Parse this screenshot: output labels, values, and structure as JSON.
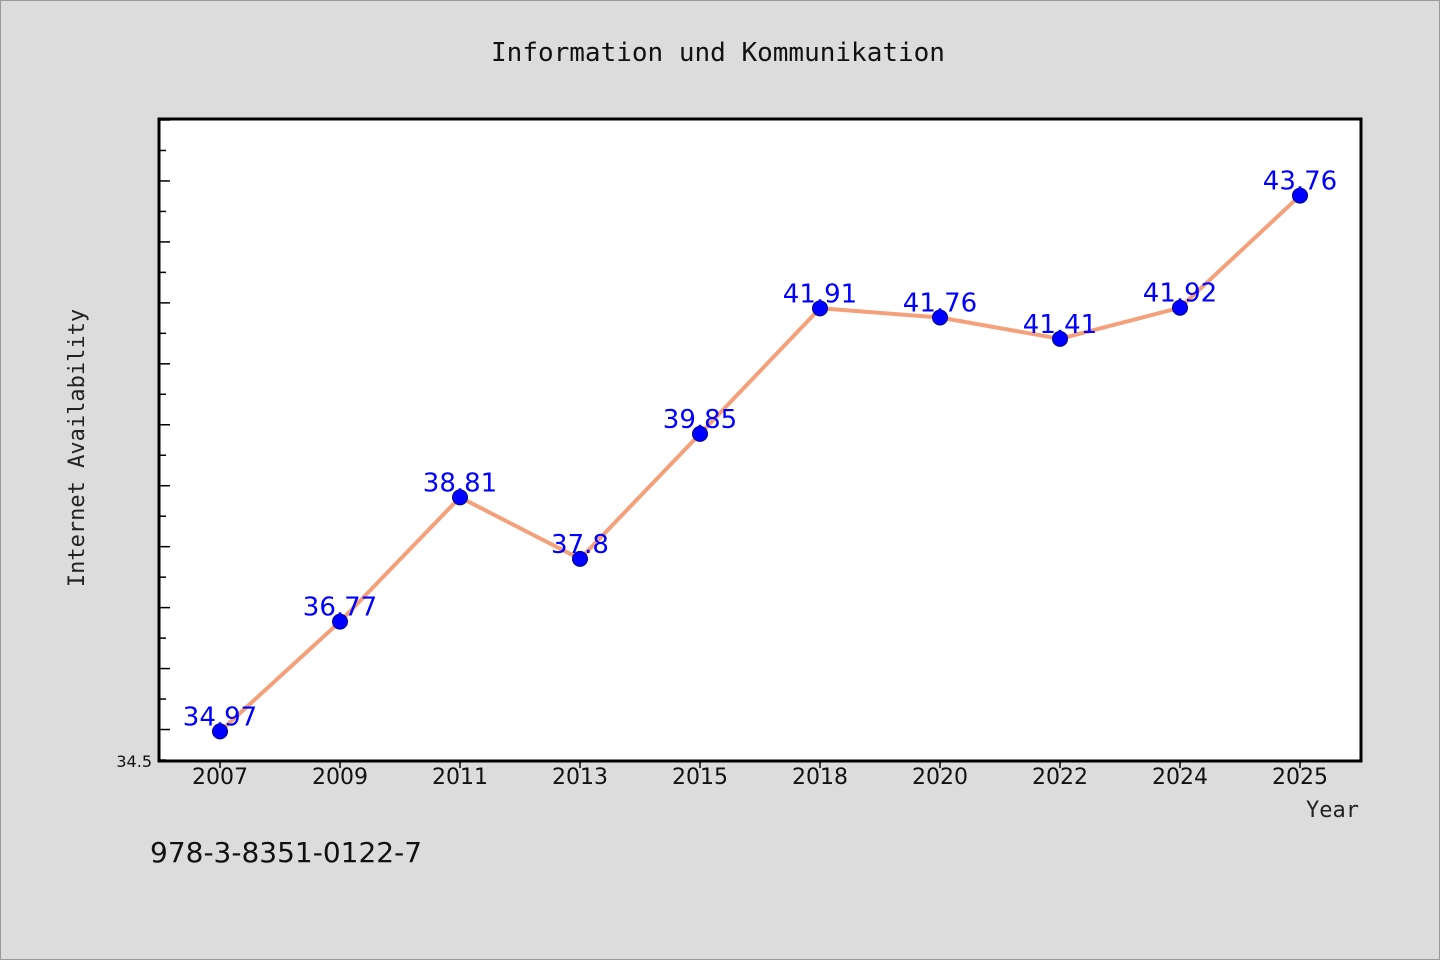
{
  "chart_data": {
    "type": "line",
    "title": "Information und Kommunikation",
    "xlabel": "Year",
    "ylabel": "Internet Availability",
    "categories": [
      "2007",
      "2009",
      "2011",
      "2013",
      "2015",
      "2018",
      "2020",
      "2022",
      "2024",
      "2025"
    ],
    "series": [
      {
        "values": [
          34.97,
          36.77,
          38.81,
          37.8,
          39.85,
          41.91,
          41.76,
          41.41,
          41.92,
          43.76
        ],
        "labels": [
          "34.97",
          "36.77",
          "38.81",
          "37.8",
          "39.85",
          "41.91",
          "41.76",
          "41.41",
          "41.92",
          "43.76"
        ]
      }
    ],
    "ylim": [
      34.5,
      45.0
    ],
    "ymin_label": "34.5",
    "grid": false,
    "legend": "none",
    "colors": {
      "line": "#f4a07a",
      "marker": "#0000ff",
      "data_label": "#0000ff",
      "plot_background": "#ffffff",
      "page_background": "#dcdcdc"
    }
  },
  "footer": {
    "isbn": "978-3-8351-0122-7"
  }
}
